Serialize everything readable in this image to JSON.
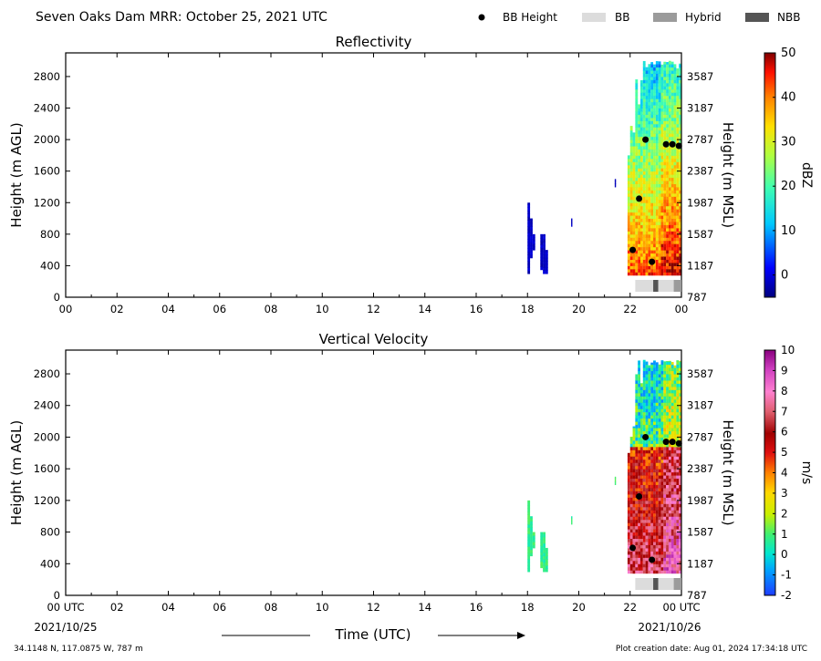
{
  "header": {
    "title": "Seven Oaks Dam MRR:  October 25, 2021 UTC",
    "legend": {
      "bb_height": "BB Height",
      "bb": "BB",
      "hybrid": "Hybrid",
      "nbb": "NBB"
    }
  },
  "footer": {
    "xlabel": "Time (UTC)",
    "start_date": "2021/10/25",
    "end_date": "2021/10/26",
    "location": "34.1148 N, 117.0875 W, 787 m",
    "creation": "Plot creation date: Aug 01, 2024 17:34:18 UTC"
  },
  "colors": {
    "bb": "#dcdcdc",
    "hybrid": "#9b9b9b",
    "nbb": "#555555",
    "bb_point": "#000000"
  },
  "chart_data": [
    {
      "type": "heatmap",
      "title": "Reflectivity",
      "ylabel": "Height (m AGL)",
      "y2label": "Height (m MSL)",
      "xlim": [
        0,
        24
      ],
      "ylim": [
        0,
        3100
      ],
      "xticks": [
        "00",
        "02",
        "04",
        "06",
        "08",
        "10",
        "12",
        "14",
        "16",
        "18",
        "20",
        "22",
        "00"
      ],
      "yticks": [
        0,
        400,
        800,
        1200,
        1600,
        2000,
        2400,
        2800
      ],
      "y2ticks": [
        787,
        1187,
        1587,
        1987,
        2387,
        2787,
        3187,
        3587
      ],
      "colorbar": {
        "label": "dBZ",
        "range": [
          -5,
          50
        ],
        "ticks": [
          0,
          10,
          20,
          30,
          40,
          50
        ],
        "colormap": "jet"
      },
      "bb_height_points": [
        {
          "time": 22.1,
          "height": 600
        },
        {
          "time": 22.35,
          "height": 1250
        },
        {
          "time": 22.6,
          "height": 2000
        },
        {
          "time": 22.85,
          "height": 450
        },
        {
          "time": 23.4,
          "height": 1940
        },
        {
          "time": 23.65,
          "height": 1940
        },
        {
          "time": 23.9,
          "height": 1920
        }
      ],
      "bb_type_bar": [
        {
          "start": 22.2,
          "end": 22.9,
          "kind": "bb"
        },
        {
          "start": 22.9,
          "end": 23.1,
          "kind": "nbb"
        },
        {
          "start": 23.1,
          "end": 23.7,
          "kind": "bb"
        },
        {
          "start": 23.7,
          "end": 24.0,
          "kind": "hybrid"
        }
      ]
    },
    {
      "type": "heatmap",
      "title": "Vertical Velocity",
      "ylabel": "Height (m AGL)",
      "y2label": "Height (m MSL)",
      "xlim": [
        0,
        24
      ],
      "ylim": [
        0,
        3100
      ],
      "xticks": [
        "00 UTC",
        "02",
        "04",
        "06",
        "08",
        "10",
        "12",
        "14",
        "16",
        "18",
        "20",
        "22",
        "00 UTC"
      ],
      "yticks": [
        0,
        400,
        800,
        1200,
        1600,
        2000,
        2400,
        2800
      ],
      "y2ticks": [
        787,
        1187,
        1587,
        1987,
        2387,
        2787,
        3187,
        3587
      ],
      "colorbar": {
        "label": "m/s",
        "range": [
          -2,
          10
        ],
        "ticks": [
          -2,
          -1,
          0,
          1,
          2,
          3,
          4,
          5,
          6,
          7,
          8,
          9,
          10
        ],
        "colormap": "velocity"
      },
      "bb_height_points": [
        {
          "time": 22.1,
          "height": 600
        },
        {
          "time": 22.35,
          "height": 1250
        },
        {
          "time": 22.6,
          "height": 2000
        },
        {
          "time": 22.85,
          "height": 450
        },
        {
          "time": 23.4,
          "height": 1940
        },
        {
          "time": 23.65,
          "height": 1940
        },
        {
          "time": 23.9,
          "height": 1920
        }
      ],
      "bb_type_bar": [
        {
          "start": 22.2,
          "end": 22.9,
          "kind": "bb"
        },
        {
          "start": 22.9,
          "end": 23.1,
          "kind": "nbb"
        },
        {
          "start": 23.1,
          "end": 23.7,
          "kind": "bb"
        },
        {
          "start": 23.7,
          "end": 24.0,
          "kind": "hybrid"
        }
      ]
    }
  ]
}
